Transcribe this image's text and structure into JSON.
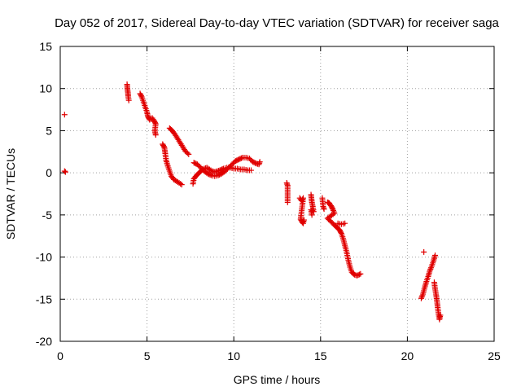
{
  "chart_data": {
    "type": "scatter",
    "title": "Day 052 of 2017, Sidereal Day-to-day VTEC variation (SDTVAR) for receiver saga",
    "xlabel": "GPS time / hours",
    "ylabel": "SDTVAR / TECUs",
    "xlim": [
      0,
      25
    ],
    "ylim": [
      -20,
      15
    ],
    "xticks": [
      "0",
      "5",
      "10",
      "15",
      "20",
      "25"
    ],
    "yticks": [
      "15",
      "10",
      "5",
      "0",
      "-5",
      "-10",
      "-15",
      "-20"
    ],
    "grid": true,
    "marker": "+",
    "marker_color": "#e00000",
    "series": [
      {
        "name": "SDTVAR",
        "segments": [
          [
            [
              0.25,
              6.9
            ]
          ],
          [
            [
              0.25,
              0.2
            ],
            [
              0.3,
              0.1
            ]
          ],
          [
            [
              3.85,
              10.5
            ],
            [
              3.87,
              10.0
            ],
            [
              3.9,
              9.5
            ],
            [
              3.92,
              9.0
            ],
            [
              3.95,
              8.6
            ]
          ],
          [
            [
              4.6,
              9.4
            ],
            [
              4.7,
              9.0
            ],
            [
              4.8,
              8.4
            ],
            [
              4.9,
              7.8
            ],
            [
              5.0,
              7.2
            ],
            [
              5.05,
              6.7
            ],
            [
              5.15,
              6.3
            ],
            [
              5.3,
              6.5
            ],
            [
              5.4,
              6.2
            ],
            [
              5.5,
              5.8
            ],
            [
              5.45,
              5.0
            ],
            [
              5.5,
              4.5
            ]
          ],
          [
            [
              5.9,
              3.4
            ],
            [
              6.0,
              3.0
            ],
            [
              6.05,
              2.3
            ],
            [
              6.1,
              1.5
            ],
            [
              6.2,
              0.8
            ],
            [
              6.3,
              0.2
            ],
            [
              6.4,
              -0.4
            ],
            [
              6.55,
              -0.8
            ],
            [
              6.7,
              -1.0
            ],
            [
              6.85,
              -1.2
            ],
            [
              7.0,
              -1.4
            ]
          ],
          [
            [
              6.3,
              5.3
            ],
            [
              6.45,
              5.0
            ],
            [
              6.6,
              4.6
            ],
            [
              6.75,
              4.1
            ],
            [
              6.9,
              3.6
            ],
            [
              7.05,
              3.1
            ],
            [
              7.2,
              2.6
            ],
            [
              7.4,
              2.2
            ]
          ],
          [
            [
              7.65,
              -1.3
            ],
            [
              7.7,
              -0.7
            ],
            [
              7.85,
              -0.3
            ],
            [
              8.0,
              0.0
            ],
            [
              8.15,
              0.3
            ],
            [
              8.3,
              0.5
            ],
            [
              8.45,
              0.6
            ],
            [
              8.6,
              0.4
            ],
            [
              8.75,
              0.2
            ],
            [
              8.9,
              0.1
            ],
            [
              9.05,
              0.2
            ],
            [
              9.2,
              0.3
            ],
            [
              9.4,
              0.5
            ],
            [
              9.6,
              0.6
            ],
            [
              9.8,
              0.6
            ],
            [
              10.0,
              0.5
            ],
            [
              10.2,
              0.5
            ],
            [
              10.4,
              0.4
            ],
            [
              10.6,
              0.4
            ],
            [
              10.8,
              0.3
            ],
            [
              11.0,
              0.3
            ]
          ],
          [
            [
              7.7,
              1.2
            ],
            [
              7.9,
              1.0
            ],
            [
              8.1,
              0.6
            ],
            [
              8.3,
              0.2
            ],
            [
              8.5,
              -0.1
            ],
            [
              8.7,
              -0.3
            ],
            [
              8.9,
              -0.4
            ],
            [
              9.1,
              -0.3
            ],
            [
              9.3,
              -0.1
            ],
            [
              9.5,
              0.2
            ],
            [
              9.7,
              0.6
            ],
            [
              9.9,
              1.0
            ],
            [
              10.1,
              1.4
            ],
            [
              10.3,
              1.6
            ],
            [
              10.5,
              1.8
            ],
            [
              10.7,
              1.8
            ],
            [
              10.9,
              1.7
            ],
            [
              11.1,
              1.3
            ],
            [
              11.3,
              1.1
            ],
            [
              11.45,
              1.0
            ],
            [
              11.5,
              1.3
            ]
          ],
          [
            [
              13.05,
              -1.2
            ],
            [
              13.1,
              -1.5
            ],
            [
              13.1,
              -3.5
            ]
          ],
          [
            [
              13.8,
              -3.0
            ],
            [
              13.9,
              -3.3
            ],
            [
              14.0,
              -3.0
            ],
            [
              13.85,
              -5.5
            ],
            [
              13.95,
              -5.9
            ],
            [
              14.05,
              -5.6
            ],
            [
              14.0,
              -6.0
            ]
          ],
          [
            [
              14.45,
              -2.6
            ],
            [
              14.5,
              -3.5
            ],
            [
              14.55,
              -4.0
            ],
            [
              14.6,
              -4.6
            ],
            [
              14.45,
              -4.4
            ],
            [
              14.5,
              -5.0
            ]
          ],
          [
            [
              15.1,
              -3.0
            ],
            [
              15.15,
              -4.0
            ],
            [
              15.2,
              -4.3
            ]
          ],
          [
            [
              15.4,
              -3.5
            ],
            [
              15.5,
              -3.6
            ],
            [
              15.6,
              -3.9
            ],
            [
              15.7,
              -4.3
            ],
            [
              15.8,
              -4.8
            ],
            [
              15.4,
              -5.4
            ],
            [
              15.6,
              -5.8
            ],
            [
              15.8,
              -6.2
            ],
            [
              15.95,
              -6.5
            ],
            [
              16.1,
              -6.8
            ],
            [
              16.2,
              -7.2
            ],
            [
              16.3,
              -7.8
            ],
            [
              16.4,
              -8.6
            ],
            [
              16.5,
              -9.4
            ],
            [
              16.6,
              -10.4
            ],
            [
              16.7,
              -11.2
            ],
            [
              16.8,
              -11.8
            ],
            [
              16.95,
              -12.1
            ],
            [
              17.1,
              -12.2
            ],
            [
              17.3,
              -12.0
            ]
          ],
          [
            [
              16.0,
              -6.0
            ],
            [
              16.2,
              -6.1
            ],
            [
              16.4,
              -6.0
            ]
          ],
          [
            [
              20.95,
              -9.4
            ]
          ],
          [
            [
              20.8,
              -14.9
            ],
            [
              20.9,
              -14.4
            ],
            [
              21.0,
              -13.6
            ],
            [
              21.1,
              -12.9
            ],
            [
              21.2,
              -12.3
            ],
            [
              21.3,
              -11.6
            ],
            [
              21.4,
              -11.1
            ],
            [
              21.5,
              -10.5
            ],
            [
              21.6,
              -9.8
            ]
          ],
          [
            [
              21.55,
              -13.0
            ],
            [
              21.6,
              -13.8
            ],
            [
              21.65,
              -14.4
            ],
            [
              21.7,
              -15.1
            ],
            [
              21.75,
              -16.0
            ],
            [
              21.8,
              -16.8
            ],
            [
              21.85,
              -17.4
            ],
            [
              21.9,
              -16.9
            ]
          ]
        ]
      }
    ]
  }
}
